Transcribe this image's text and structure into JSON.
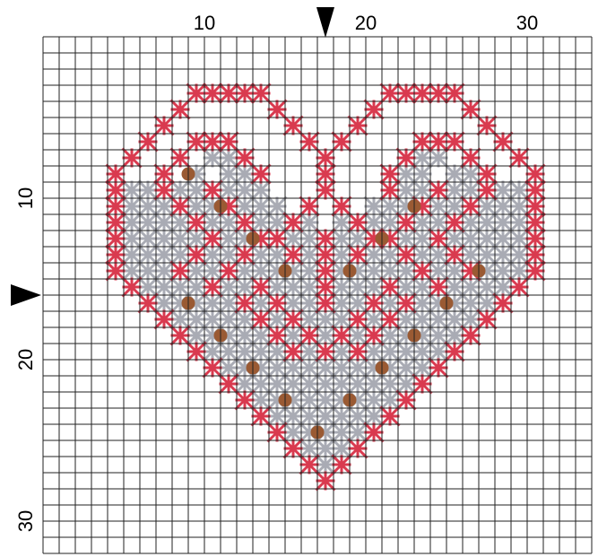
{
  "pattern": {
    "grid": {
      "columns": 34,
      "rows": 32
    },
    "colors": {
      "grid_line": "#222222",
      "background": "#ffffff",
      "red_stitch": "#d93a4f",
      "gray_stitch": "#a9abb4",
      "bead": "#9a5a33",
      "marker": "#000000"
    },
    "x_tick_labels": [
      {
        "text": "10",
        "col": 10
      },
      {
        "text": "20",
        "col": 20
      },
      {
        "text": "30",
        "col": 30
      }
    ],
    "y_tick_labels": [
      {
        "text": "10",
        "row": 10
      },
      {
        "text": "20",
        "row": 20
      },
      {
        "text": "30",
        "row": 30
      }
    ],
    "center_markers": {
      "col": 17,
      "row": 16
    },
    "red_stitches": [
      [
        9,
        3
      ],
      [
        10,
        3
      ],
      [
        11,
        3
      ],
      [
        12,
        3
      ],
      [
        13,
        3
      ],
      [
        21,
        3
      ],
      [
        22,
        3
      ],
      [
        23,
        3
      ],
      [
        24,
        3
      ],
      [
        25,
        3
      ],
      [
        8,
        4
      ],
      [
        14,
        4
      ],
      [
        20,
        4
      ],
      [
        26,
        4
      ],
      [
        7,
        5
      ],
      [
        15,
        5
      ],
      [
        19,
        5
      ],
      [
        27,
        5
      ],
      [
        6,
        6
      ],
      [
        9,
        6
      ],
      [
        10,
        6
      ],
      [
        11,
        6
      ],
      [
        16,
        6
      ],
      [
        18,
        6
      ],
      [
        23,
        6
      ],
      [
        24,
        6
      ],
      [
        25,
        6
      ],
      [
        28,
        6
      ],
      [
        5,
        7
      ],
      [
        8,
        7
      ],
      [
        12,
        7
      ],
      [
        17,
        7
      ],
      [
        22,
        7
      ],
      [
        26,
        7
      ],
      [
        29,
        7
      ],
      [
        4,
        8
      ],
      [
        7,
        8
      ],
      [
        13,
        8
      ],
      [
        17,
        8
      ],
      [
        21,
        8
      ],
      [
        27,
        8
      ],
      [
        30,
        8
      ],
      [
        4,
        9
      ],
      [
        7,
        9
      ],
      [
        10,
        9
      ],
      [
        17,
        9
      ],
      [
        21,
        9
      ],
      [
        24,
        9
      ],
      [
        27,
        9
      ],
      [
        30,
        9
      ],
      [
        4,
        10
      ],
      [
        8,
        10
      ],
      [
        11,
        10
      ],
      [
        16,
        10
      ],
      [
        18,
        10
      ],
      [
        23,
        10
      ],
      [
        26,
        10
      ],
      [
        30,
        10
      ],
      [
        4,
        11
      ],
      [
        9,
        11
      ],
      [
        12,
        11
      ],
      [
        15,
        11
      ],
      [
        19,
        11
      ],
      [
        22,
        11
      ],
      [
        25,
        11
      ],
      [
        30,
        11
      ],
      [
        4,
        12
      ],
      [
        10,
        12
      ],
      [
        13,
        12
      ],
      [
        14,
        12
      ],
      [
        17,
        12
      ],
      [
        20,
        12
      ],
      [
        21,
        12
      ],
      [
        24,
        12
      ],
      [
        30,
        12
      ],
      [
        4,
        13
      ],
      [
        9,
        13
      ],
      [
        12,
        13
      ],
      [
        15,
        13
      ],
      [
        17,
        13
      ],
      [
        19,
        13
      ],
      [
        22,
        13
      ],
      [
        25,
        13
      ],
      [
        30,
        13
      ],
      [
        4,
        14
      ],
      [
        8,
        14
      ],
      [
        11,
        14
      ],
      [
        17,
        14
      ],
      [
        23,
        14
      ],
      [
        26,
        14
      ],
      [
        30,
        14
      ],
      [
        5,
        15
      ],
      [
        10,
        15
      ],
      [
        13,
        15
      ],
      [
        17,
        15
      ],
      [
        21,
        15
      ],
      [
        24,
        15
      ],
      [
        29,
        15
      ],
      [
        6,
        16
      ],
      [
        12,
        16
      ],
      [
        14,
        16
      ],
      [
        17,
        16
      ],
      [
        20,
        16
      ],
      [
        22,
        16
      ],
      [
        28,
        16
      ],
      [
        7,
        17
      ],
      [
        13,
        17
      ],
      [
        15,
        17
      ],
      [
        19,
        17
      ],
      [
        21,
        17
      ],
      [
        27,
        17
      ],
      [
        8,
        18
      ],
      [
        14,
        18
      ],
      [
        16,
        18
      ],
      [
        18,
        18
      ],
      [
        20,
        18
      ],
      [
        26,
        18
      ],
      [
        9,
        19
      ],
      [
        15,
        19
      ],
      [
        17,
        19
      ],
      [
        19,
        19
      ],
      [
        25,
        19
      ],
      [
        10,
        20
      ],
      [
        24,
        20
      ],
      [
        11,
        21
      ],
      [
        23,
        21
      ],
      [
        12,
        22
      ],
      [
        22,
        22
      ],
      [
        13,
        23
      ],
      [
        21,
        23
      ],
      [
        14,
        24
      ],
      [
        20,
        24
      ],
      [
        15,
        25
      ],
      [
        19,
        25
      ],
      [
        16,
        26
      ],
      [
        18,
        26
      ],
      [
        17,
        27
      ]
    ],
    "gray_stitches": [
      [
        10,
        7
      ],
      [
        11,
        7
      ],
      [
        23,
        7
      ],
      [
        24,
        7
      ],
      [
        9,
        8
      ],
      [
        11,
        8
      ],
      [
        12,
        8
      ],
      [
        22,
        8
      ],
      [
        23,
        8
      ],
      [
        25,
        8
      ],
      [
        26,
        8
      ],
      [
        5,
        9
      ],
      [
        6,
        9
      ],
      [
        8,
        9
      ],
      [
        9,
        9
      ],
      [
        11,
        9
      ],
      [
        12,
        9
      ],
      [
        13,
        9
      ],
      [
        22,
        9
      ],
      [
        23,
        9
      ],
      [
        25,
        9
      ],
      [
        26,
        9
      ],
      [
        28,
        9
      ],
      [
        29,
        9
      ],
      [
        5,
        10
      ],
      [
        6,
        10
      ],
      [
        7,
        10
      ],
      [
        9,
        10
      ],
      [
        10,
        10
      ],
      [
        12,
        10
      ],
      [
        13,
        10
      ],
      [
        14,
        10
      ],
      [
        20,
        10
      ],
      [
        21,
        10
      ],
      [
        22,
        10
      ],
      [
        24,
        10
      ],
      [
        25,
        10
      ],
      [
        27,
        10
      ],
      [
        28,
        10
      ],
      [
        29,
        10
      ],
      [
        5,
        11
      ],
      [
        6,
        11
      ],
      [
        7,
        11
      ],
      [
        8,
        11
      ],
      [
        10,
        11
      ],
      [
        11,
        11
      ],
      [
        13,
        11
      ],
      [
        14,
        11
      ],
      [
        16,
        11
      ],
      [
        18,
        11
      ],
      [
        20,
        11
      ],
      [
        21,
        11
      ],
      [
        23,
        11
      ],
      [
        24,
        11
      ],
      [
        26,
        11
      ],
      [
        27,
        11
      ],
      [
        28,
        11
      ],
      [
        29,
        11
      ],
      [
        5,
        12
      ],
      [
        6,
        12
      ],
      [
        7,
        12
      ],
      [
        8,
        12
      ],
      [
        9,
        12
      ],
      [
        11,
        12
      ],
      [
        12,
        12
      ],
      [
        15,
        12
      ],
      [
        16,
        12
      ],
      [
        18,
        12
      ],
      [
        19,
        12
      ],
      [
        22,
        12
      ],
      [
        23,
        12
      ],
      [
        25,
        12
      ],
      [
        26,
        12
      ],
      [
        27,
        12
      ],
      [
        28,
        12
      ],
      [
        29,
        12
      ],
      [
        5,
        13
      ],
      [
        6,
        13
      ],
      [
        7,
        13
      ],
      [
        8,
        13
      ],
      [
        10,
        13
      ],
      [
        11,
        13
      ],
      [
        13,
        13
      ],
      [
        14,
        13
      ],
      [
        16,
        13
      ],
      [
        18,
        13
      ],
      [
        20,
        13
      ],
      [
        21,
        13
      ],
      [
        23,
        13
      ],
      [
        24,
        13
      ],
      [
        26,
        13
      ],
      [
        27,
        13
      ],
      [
        28,
        13
      ],
      [
        29,
        13
      ],
      [
        5,
        14
      ],
      [
        6,
        14
      ],
      [
        7,
        14
      ],
      [
        9,
        14
      ],
      [
        10,
        14
      ],
      [
        12,
        14
      ],
      [
        13,
        14
      ],
      [
        14,
        14
      ],
      [
        15,
        14
      ],
      [
        16,
        14
      ],
      [
        18,
        14
      ],
      [
        19,
        14
      ],
      [
        20,
        14
      ],
      [
        21,
        14
      ],
      [
        22,
        14
      ],
      [
        24,
        14
      ],
      [
        25,
        14
      ],
      [
        27,
        14
      ],
      [
        28,
        14
      ],
      [
        29,
        14
      ],
      [
        6,
        15
      ],
      [
        7,
        15
      ],
      [
        8,
        15
      ],
      [
        9,
        15
      ],
      [
        11,
        15
      ],
      [
        12,
        15
      ],
      [
        14,
        15
      ],
      [
        15,
        15
      ],
      [
        16,
        15
      ],
      [
        18,
        15
      ],
      [
        19,
        15
      ],
      [
        20,
        15
      ],
      [
        22,
        15
      ],
      [
        23,
        15
      ],
      [
        25,
        15
      ],
      [
        26,
        15
      ],
      [
        27,
        15
      ],
      [
        28,
        15
      ],
      [
        7,
        16
      ],
      [
        8,
        16
      ],
      [
        9,
        16
      ],
      [
        10,
        16
      ],
      [
        11,
        16
      ],
      [
        13,
        16
      ],
      [
        15,
        16
      ],
      [
        16,
        16
      ],
      [
        18,
        16
      ],
      [
        19,
        16
      ],
      [
        21,
        16
      ],
      [
        23,
        16
      ],
      [
        24,
        16
      ],
      [
        25,
        16
      ],
      [
        26,
        16
      ],
      [
        27,
        16
      ],
      [
        8,
        17
      ],
      [
        9,
        17
      ],
      [
        10,
        17
      ],
      [
        11,
        17
      ],
      [
        12,
        17
      ],
      [
        14,
        17
      ],
      [
        16,
        17
      ],
      [
        17,
        17
      ],
      [
        18,
        17
      ],
      [
        20,
        17
      ],
      [
        22,
        17
      ],
      [
        23,
        17
      ],
      [
        24,
        17
      ],
      [
        25,
        17
      ],
      [
        26,
        17
      ],
      [
        9,
        18
      ],
      [
        10,
        18
      ],
      [
        11,
        18
      ],
      [
        12,
        18
      ],
      [
        13,
        18
      ],
      [
        15,
        18
      ],
      [
        17,
        18
      ],
      [
        19,
        18
      ],
      [
        21,
        18
      ],
      [
        22,
        18
      ],
      [
        23,
        18
      ],
      [
        24,
        18
      ],
      [
        25,
        18
      ],
      [
        10,
        19
      ],
      [
        11,
        19
      ],
      [
        12,
        19
      ],
      [
        13,
        19
      ],
      [
        14,
        19
      ],
      [
        16,
        19
      ],
      [
        18,
        19
      ],
      [
        20,
        19
      ],
      [
        21,
        19
      ],
      [
        22,
        19
      ],
      [
        23,
        19
      ],
      [
        24,
        19
      ],
      [
        11,
        20
      ],
      [
        12,
        20
      ],
      [
        13,
        20
      ],
      [
        14,
        20
      ],
      [
        15,
        20
      ],
      [
        16,
        20
      ],
      [
        17,
        20
      ],
      [
        18,
        20
      ],
      [
        19,
        20
      ],
      [
        20,
        20
      ],
      [
        21,
        20
      ],
      [
        22,
        20
      ],
      [
        23,
        20
      ],
      [
        12,
        21
      ],
      [
        13,
        21
      ],
      [
        14,
        21
      ],
      [
        15,
        21
      ],
      [
        16,
        21
      ],
      [
        17,
        21
      ],
      [
        18,
        21
      ],
      [
        19,
        21
      ],
      [
        20,
        21
      ],
      [
        21,
        21
      ],
      [
        22,
        21
      ],
      [
        13,
        22
      ],
      [
        14,
        22
      ],
      [
        15,
        22
      ],
      [
        16,
        22
      ],
      [
        17,
        22
      ],
      [
        18,
        22
      ],
      [
        19,
        22
      ],
      [
        20,
        22
      ],
      [
        21,
        22
      ],
      [
        14,
        23
      ],
      [
        15,
        23
      ],
      [
        16,
        23
      ],
      [
        17,
        23
      ],
      [
        18,
        23
      ],
      [
        19,
        23
      ],
      [
        20,
        23
      ],
      [
        15,
        24
      ],
      [
        16,
        24
      ],
      [
        17,
        24
      ],
      [
        18,
        24
      ],
      [
        19,
        24
      ],
      [
        16,
        25
      ],
      [
        17,
        25
      ],
      [
        18,
        25
      ],
      [
        17,
        26
      ]
    ],
    "beads": [
      [
        9,
        8.5
      ],
      [
        11,
        10.5
      ],
      [
        13,
        12.5
      ],
      [
        15,
        14.5
      ],
      [
        19,
        14.5
      ],
      [
        21,
        12.5
      ],
      [
        23,
        10.5
      ],
      [
        27,
        14.5
      ],
      [
        9,
        16.5
      ],
      [
        11,
        18.5
      ],
      [
        13,
        20.5
      ],
      [
        15,
        22.5
      ],
      [
        19,
        22.5
      ],
      [
        21,
        20.5
      ],
      [
        23,
        18.5
      ],
      [
        25,
        16.5
      ],
      [
        17,
        24.5
      ]
    ]
  }
}
